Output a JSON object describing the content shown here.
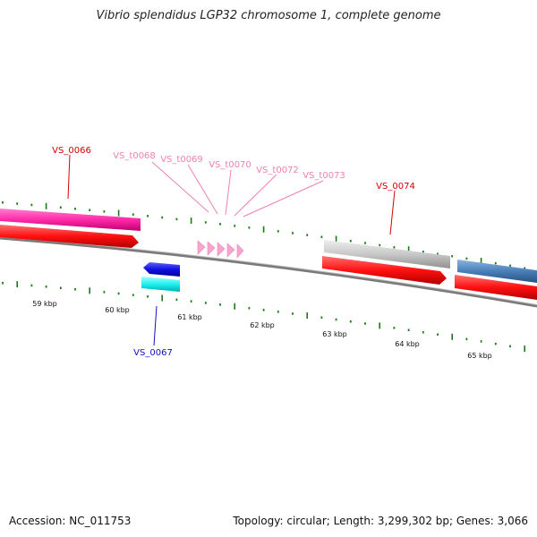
{
  "title": "Vibrio splendidus LGP32 chromosome 1, complete genome",
  "footer": {
    "accession": "Accession: NC_011753",
    "summary": "Topology: circular; Length: 3,299,302 bp; Genes: 3,066"
  },
  "colors": {
    "backbone": "#808080",
    "tick": "#1a7a1a",
    "red": "#ff1010",
    "pink_magenta": "#ff2aa8",
    "trna": "#f6a6cd",
    "blue": "#1010e0",
    "cyan": "#20f0f0",
    "grey": "#c8c8c8",
    "steel": "#4a7fb8",
    "label_red": "#d40000",
    "label_pink": "#f080b0",
    "label_blue": "#1010c0"
  },
  "scale": {
    "labels": [
      "59 kbp",
      "60 kbp",
      "61 kbp",
      "62 kbp",
      "63 kbp",
      "64 kbp",
      "65 kbp"
    ]
  },
  "genes": [
    {
      "id": "VS_0066",
      "label": "VS_0066",
      "color": "label_red"
    },
    {
      "id": "VS_0067",
      "label": "VS_0067",
      "color": "label_blue"
    },
    {
      "id": "VS_t0068",
      "label": "VS_t0068",
      "color": "label_pink"
    },
    {
      "id": "VS_t0069",
      "label": "VS_t0069",
      "color": "label_pink"
    },
    {
      "id": "VS_t0070",
      "label": "VS_t0070",
      "color": "label_pink"
    },
    {
      "id": "VS_t0072",
      "label": "VS_t0072",
      "color": "label_pink"
    },
    {
      "id": "VS_t0073",
      "label": "VS_t0073",
      "color": "label_pink"
    },
    {
      "id": "VS_0074",
      "label": "VS_0074",
      "color": "label_red"
    }
  ]
}
